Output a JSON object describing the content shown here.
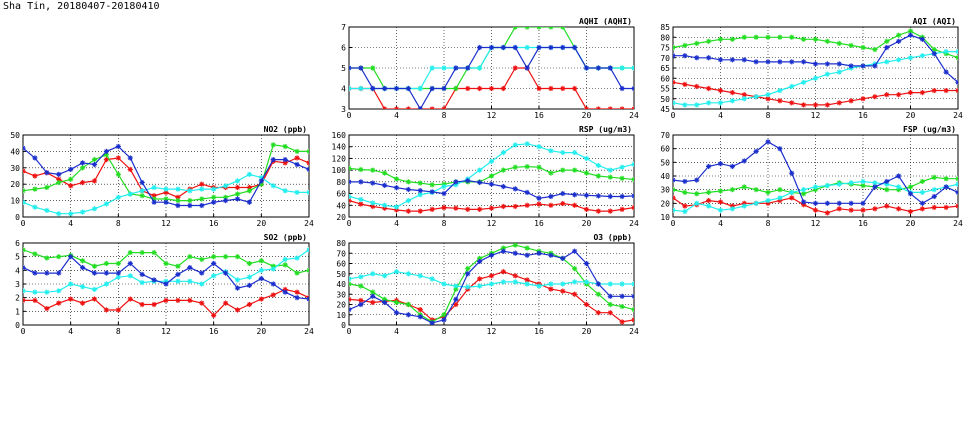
{
  "page": {
    "title": "Sha Tin, 20180407-20180410"
  },
  "colors": {
    "red": "#ee1111",
    "green": "#22dd22",
    "cyan": "#22eeee",
    "blue": "#1a2ecc"
  },
  "chart_data": [
    {
      "id": "no2",
      "type": "line",
      "title": "NO2 (ppb)",
      "x": [
        0,
        1,
        2,
        3,
        4,
        5,
        6,
        7,
        8,
        9,
        10,
        11,
        12,
        13,
        14,
        15,
        16,
        17,
        18,
        19,
        20,
        21,
        22,
        23,
        24
      ],
      "xlim": [
        0,
        24
      ],
      "xticks": [
        0,
        4,
        8,
        12,
        16,
        20,
        24
      ],
      "ylim": [
        0,
        50
      ],
      "yticks": [
        0,
        10,
        20,
        30,
        40,
        50
      ],
      "series": [
        {
          "name": "red",
          "color": "#ee1111",
          "values": [
            28,
            25,
            27,
            23,
            19,
            21,
            22,
            35,
            36,
            29,
            16,
            13,
            15,
            12,
            17,
            20,
            18,
            18,
            18,
            18,
            20,
            34,
            33,
            36,
            33
          ]
        },
        {
          "name": "green",
          "color": "#22dd22",
          "values": [
            16,
            17,
            18,
            21,
            23,
            30,
            35,
            38,
            26,
            14,
            13,
            11,
            11,
            10,
            10,
            11,
            12,
            12,
            14,
            16,
            20,
            44,
            43,
            40,
            40
          ]
        },
        {
          "name": "cyan",
          "color": "#22eeee",
          "values": [
            9,
            6,
            4,
            2,
            2,
            3,
            5,
            8,
            12,
            14,
            16,
            18,
            17,
            17,
            16,
            17,
            17,
            19,
            22,
            26,
            24,
            19,
            16,
            15,
            15
          ]
        },
        {
          "name": "blue",
          "color": "#1a2ecc",
          "values": [
            42,
            36,
            27,
            26,
            29,
            33,
            32,
            40,
            43,
            36,
            21,
            9,
            9,
            7,
            7,
            7,
            9,
            10,
            11,
            9,
            22,
            35,
            35,
            32,
            29
          ]
        }
      ]
    },
    {
      "id": "so2",
      "type": "line",
      "title": "SO2 (ppb)",
      "x": [
        0,
        1,
        2,
        3,
        4,
        5,
        6,
        7,
        8,
        9,
        10,
        11,
        12,
        13,
        14,
        15,
        16,
        17,
        18,
        19,
        20,
        21,
        22,
        23,
        24
      ],
      "xlim": [
        0,
        24
      ],
      "xticks": [
        0,
        4,
        8,
        12,
        16,
        20,
        24
      ],
      "ylim": [
        0,
        6
      ],
      "yticks": [
        0,
        1,
        2,
        3,
        4,
        5,
        6
      ],
      "series": [
        {
          "name": "red",
          "color": "#ee1111",
          "values": [
            1.8,
            1.8,
            1.2,
            1.6,
            1.9,
            1.6,
            1.9,
            1.1,
            1.1,
            1.9,
            1.5,
            1.5,
            1.8,
            1.8,
            1.8,
            1.6,
            0.7,
            1.6,
            1.1,
            1.5,
            1.9,
            2.2,
            2.6,
            2.4,
            2.0
          ]
        },
        {
          "name": "green",
          "color": "#22dd22",
          "values": [
            5.5,
            5.2,
            4.9,
            5.0,
            5.1,
            4.7,
            4.3,
            4.5,
            4.5,
            5.3,
            5.3,
            5.3,
            4.5,
            4.3,
            5.0,
            4.8,
            5.0,
            5.0,
            5.0,
            4.5,
            4.7,
            4.3,
            4.4,
            3.8,
            4.0
          ]
        },
        {
          "name": "cyan",
          "color": "#22eeee",
          "values": [
            2.5,
            2.4,
            2.4,
            2.5,
            3.0,
            2.8,
            2.6,
            3.0,
            3.5,
            3.6,
            3.1,
            3.2,
            3.2,
            3.2,
            3.2,
            3.0,
            3.6,
            3.9,
            3.3,
            3.5,
            4.0,
            4.1,
            4.8,
            4.9,
            5.5
          ]
        },
        {
          "name": "blue",
          "color": "#1a2ecc",
          "values": [
            4.2,
            3.8,
            3.8,
            3.8,
            5.0,
            4.2,
            3.8,
            3.8,
            3.8,
            4.5,
            3.7,
            3.3,
            3.0,
            3.7,
            4.2,
            3.8,
            4.5,
            3.8,
            2.7,
            2.9,
            3.4,
            3.0,
            2.4,
            2.0,
            1.9
          ]
        }
      ]
    },
    {
      "id": "aqhi",
      "type": "line",
      "title": "AQHI (AQHI)",
      "x": [
        0,
        1,
        2,
        3,
        4,
        5,
        6,
        7,
        8,
        9,
        10,
        11,
        12,
        13,
        14,
        15,
        16,
        17,
        18,
        19,
        20,
        21,
        22,
        23,
        24
      ],
      "xlim": [
        0,
        24
      ],
      "xticks": [
        0,
        4,
        8,
        12,
        16,
        20,
        24
      ],
      "ylim": [
        3,
        7
      ],
      "yticks": [
        3,
        4,
        5,
        6,
        7
      ],
      "series": [
        {
          "name": "red",
          "color": "#ee1111",
          "values": [
            4,
            4,
            4,
            3,
            3,
            3,
            3,
            3,
            3,
            4,
            4,
            4,
            4,
            4,
            5,
            5,
            4,
            4,
            4,
            4,
            3,
            3,
            3,
            3,
            3
          ]
        },
        {
          "name": "green",
          "color": "#22dd22",
          "values": [
            5,
            5,
            5,
            4,
            4,
            4,
            4,
            4,
            4,
            4,
            5,
            5,
            6,
            6,
            7,
            7,
            7,
            7,
            7,
            6,
            5,
            5,
            5,
            5,
            5
          ]
        },
        {
          "name": "cyan",
          "color": "#22eeee",
          "values": [
            4,
            4,
            4,
            4,
            4,
            4,
            4,
            5,
            5,
            5,
            5,
            5,
            6,
            6,
            6,
            6,
            6,
            6,
            6,
            6,
            5,
            5,
            5,
            5,
            5
          ]
        },
        {
          "name": "blue",
          "color": "#1a2ecc",
          "values": [
            5,
            5,
            4,
            4,
            4,
            4,
            3,
            4,
            4,
            5,
            5,
            6,
            6,
            6,
            6,
            5,
            6,
            6,
            6,
            6,
            5,
            5,
            5,
            4,
            4
          ]
        }
      ]
    },
    {
      "id": "rsp",
      "type": "line",
      "title": "RSP (ug/m3)",
      "x": [
        0,
        1,
        2,
        3,
        4,
        5,
        6,
        7,
        8,
        9,
        10,
        11,
        12,
        13,
        14,
        15,
        16,
        17,
        18,
        19,
        20,
        21,
        22,
        23,
        24
      ],
      "xlim": [
        0,
        24
      ],
      "xticks": [
        0,
        4,
        8,
        12,
        16,
        20,
        24
      ],
      "ylim": [
        20,
        160
      ],
      "yticks": [
        20,
        40,
        60,
        80,
        100,
        120,
        140,
        160
      ],
      "series": [
        {
          "name": "red",
          "color": "#ee1111",
          "values": [
            48,
            42,
            38,
            35,
            32,
            30,
            30,
            33,
            36,
            35,
            33,
            33,
            35,
            38,
            38,
            40,
            42,
            40,
            43,
            40,
            33,
            30,
            30,
            33,
            36
          ]
        },
        {
          "name": "green",
          "color": "#22dd22",
          "values": [
            103,
            101,
            100,
            95,
            85,
            80,
            78,
            75,
            76,
            80,
            80,
            80,
            90,
            100,
            105,
            106,
            105,
            95,
            100,
            100,
            95,
            90,
            88,
            86,
            84
          ]
        },
        {
          "name": "cyan",
          "color": "#22eeee",
          "values": [
            55,
            50,
            44,
            40,
            37,
            48,
            58,
            62,
            72,
            75,
            85,
            100,
            115,
            130,
            143,
            145,
            140,
            133,
            130,
            130,
            120,
            108,
            100,
            105,
            110
          ]
        },
        {
          "name": "blue",
          "color": "#1a2ecc",
          "values": [
            80,
            80,
            78,
            74,
            70,
            67,
            65,
            63,
            60,
            80,
            82,
            79,
            76,
            72,
            68,
            62,
            52,
            55,
            60,
            58,
            57,
            56,
            55,
            55,
            56
          ]
        }
      ]
    },
    {
      "id": "o3",
      "type": "line",
      "title": "O3 (ppb)",
      "x": [
        0,
        1,
        2,
        3,
        4,
        5,
        6,
        7,
        8,
        9,
        10,
        11,
        12,
        13,
        14,
        15,
        16,
        17,
        18,
        19,
        20,
        21,
        22,
        23,
        24
      ],
      "xlim": [
        0,
        24
      ],
      "xticks": [
        0,
        4,
        8,
        12,
        16,
        20,
        24
      ],
      "ylim": [
        0,
        80
      ],
      "yticks": [
        0,
        10,
        20,
        30,
        40,
        50,
        60,
        70,
        80
      ],
      "series": [
        {
          "name": "red",
          "color": "#ee1111",
          "values": [
            25,
            24,
            22,
            23,
            24,
            20,
            15,
            5,
            8,
            20,
            35,
            45,
            48,
            52,
            48,
            44,
            40,
            35,
            33,
            30,
            20,
            12,
            12,
            3,
            5
          ]
        },
        {
          "name": "green",
          "color": "#22dd22",
          "values": [
            40,
            38,
            32,
            25,
            22,
            20,
            10,
            3,
            10,
            35,
            55,
            65,
            70,
            75,
            78,
            75,
            72,
            70,
            65,
            55,
            40,
            30,
            20,
            18,
            15
          ]
        },
        {
          "name": "cyan",
          "color": "#22eeee",
          "values": [
            45,
            47,
            50,
            48,
            52,
            50,
            48,
            45,
            40,
            38,
            37,
            38,
            40,
            42,
            42,
            40,
            38,
            40,
            40,
            42,
            42,
            40,
            40,
            40,
            40
          ]
        },
        {
          "name": "blue",
          "color": "#1a2ecc",
          "values": [
            15,
            20,
            28,
            22,
            12,
            10,
            8,
            2,
            5,
            25,
            50,
            62,
            68,
            72,
            70,
            68,
            70,
            68,
            65,
            72,
            60,
            40,
            28,
            28,
            28
          ]
        }
      ]
    },
    {
      "id": "aqi",
      "type": "line",
      "title": "AQI (AQI)",
      "x": [
        0,
        1,
        2,
        3,
        4,
        5,
        6,
        7,
        8,
        9,
        10,
        11,
        12,
        13,
        14,
        15,
        16,
        17,
        18,
        19,
        20,
        21,
        22,
        23,
        24
      ],
      "xlim": [
        0,
        24
      ],
      "xticks": [
        0,
        4,
        8,
        12,
        16,
        20,
        24
      ],
      "ylim": [
        45,
        85
      ],
      "yticks": [
        45,
        50,
        55,
        60,
        65,
        70,
        75,
        80,
        85
      ],
      "series": [
        {
          "name": "red",
          "color": "#ee1111",
          "values": [
            58,
            57,
            56,
            55,
            54,
            53,
            52,
            51,
            50,
            49,
            48,
            47,
            47,
            47,
            48,
            49,
            50,
            51,
            52,
            52,
            53,
            53,
            54,
            54,
            54
          ]
        },
        {
          "name": "green",
          "color": "#22dd22",
          "values": [
            75,
            76,
            77,
            78,
            79,
            79,
            80,
            80,
            80,
            80,
            80,
            79,
            79,
            78,
            77,
            76,
            75,
            74,
            78,
            81,
            83,
            80,
            74,
            72,
            70
          ]
        },
        {
          "name": "cyan",
          "color": "#22eeee",
          "values": [
            48,
            47,
            47,
            48,
            48,
            49,
            50,
            51,
            52,
            54,
            56,
            58,
            60,
            62,
            63,
            65,
            66,
            67,
            68,
            69,
            70,
            71,
            72,
            73,
            73
          ]
        },
        {
          "name": "blue",
          "color": "#1a2ecc",
          "values": [
            71,
            71,
            70,
            70,
            69,
            69,
            69,
            68,
            68,
            68,
            68,
            68,
            67,
            67,
            67,
            66,
            66,
            66,
            75,
            78,
            81,
            79,
            72,
            63,
            58
          ]
        }
      ]
    },
    {
      "id": "fsp",
      "type": "line",
      "title": "FSP (ug/m3)",
      "x": [
        0,
        1,
        2,
        3,
        4,
        5,
        6,
        7,
        8,
        9,
        10,
        11,
        12,
        13,
        14,
        15,
        16,
        17,
        18,
        19,
        20,
        21,
        22,
        23,
        24
      ],
      "xlim": [
        0,
        24
      ],
      "xticks": [
        0,
        4,
        8,
        12,
        16,
        20,
        24
      ],
      "ylim": [
        10,
        70
      ],
      "yticks": [
        10,
        20,
        30,
        40,
        50,
        60,
        70
      ],
      "series": [
        {
          "name": "red",
          "color": "#ee1111",
          "values": [
            24,
            18,
            19,
            22,
            21,
            18,
            20,
            20,
            20,
            22,
            24,
            19,
            15,
            13,
            16,
            15,
            15,
            16,
            18,
            16,
            14,
            16,
            17,
            17,
            18
          ]
        },
        {
          "name": "green",
          "color": "#22dd22",
          "values": [
            30,
            28,
            27,
            28,
            29,
            30,
            32,
            30,
            28,
            30,
            28,
            27,
            30,
            33,
            35,
            34,
            33,
            32,
            30,
            30,
            32,
            36,
            39,
            38,
            38
          ]
        },
        {
          "name": "cyan",
          "color": "#22eeee",
          "values": [
            15,
            14,
            20,
            18,
            15,
            16,
            18,
            20,
            22,
            24,
            28,
            30,
            32,
            33,
            34,
            35,
            36,
            35,
            34,
            32,
            28,
            28,
            30,
            32,
            34
          ]
        },
        {
          "name": "blue",
          "color": "#1a2ecc",
          "values": [
            37,
            36,
            37,
            47,
            49,
            47,
            51,
            58,
            65,
            60,
            42,
            21,
            20,
            20,
            20,
            20,
            20,
            32,
            36,
            40,
            27,
            20,
            25,
            32,
            28
          ]
        }
      ]
    }
  ]
}
